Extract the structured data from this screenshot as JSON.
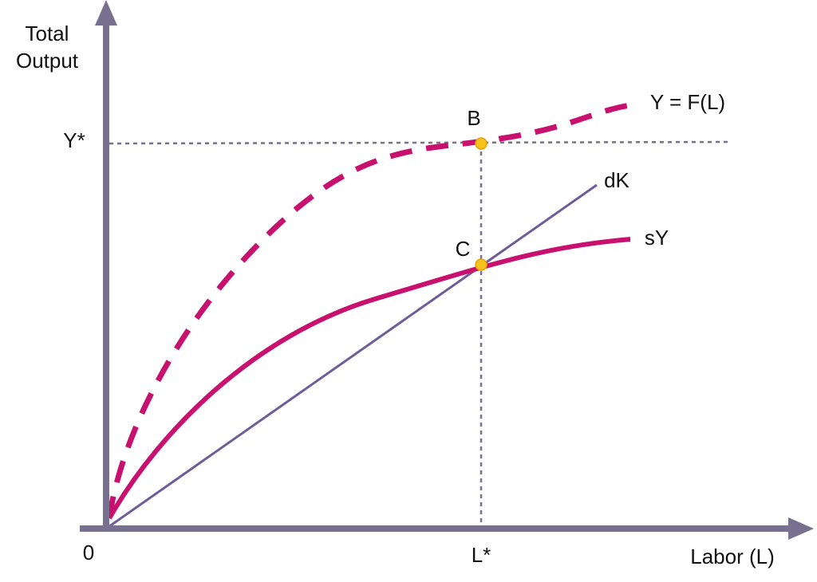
{
  "axes": {
    "y_label": [
      "Total",
      "Output"
    ],
    "x_label": "Labor (L)",
    "origin": "0"
  },
  "markers": {
    "y_star": "Y*",
    "l_star": "L*"
  },
  "points": [
    {
      "label": "B"
    },
    {
      "label": "C"
    }
  ],
  "curves": [
    {
      "label": "Y = F(L)"
    },
    {
      "label": "dK"
    },
    {
      "label": "sY"
    }
  ]
}
